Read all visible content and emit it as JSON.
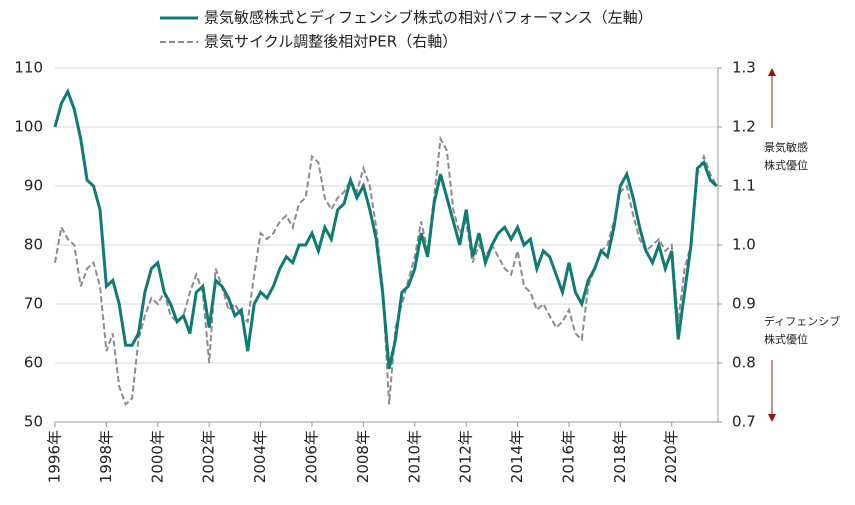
{
  "chart_data": {
    "type": "line",
    "legend": "top",
    "xlim": [
      1996,
      2021.8
    ],
    "xticks": [
      {
        "value": 1996,
        "label": "1996年"
      },
      {
        "value": 1998,
        "label": "1998年"
      },
      {
        "value": 2000,
        "label": "2000年"
      },
      {
        "value": 2002,
        "label": "2002年"
      },
      {
        "value": 2004,
        "label": "2004年"
      },
      {
        "value": 2006,
        "label": "2006年"
      },
      {
        "value": 2008,
        "label": "2008年"
      },
      {
        "value": 2010,
        "label": "2010年"
      },
      {
        "value": 2012,
        "label": "2012年"
      },
      {
        "value": 2014,
        "label": "2014年"
      },
      {
        "value": 2016,
        "label": "2016年"
      },
      {
        "value": 2018,
        "label": "2018年"
      },
      {
        "value": 2020,
        "label": "2020年"
      }
    ],
    "ylim": [
      50,
      110
    ],
    "yticks": [
      50,
      60,
      70,
      80,
      90,
      100,
      110
    ],
    "y2lim": [
      0.7,
      1.3
    ],
    "y2ticks": [
      {
        "value": 0.7,
        "label": "0.7"
      },
      {
        "value": 0.8,
        "label": "0.8"
      },
      {
        "value": 0.9,
        "label": "0.9"
      },
      {
        "value": 1.0,
        "label": "1.0"
      },
      {
        "value": 1.1,
        "label": "1.1"
      },
      {
        "value": 1.2,
        "label": "1.2"
      },
      {
        "value": 1.3,
        "label": "1.3"
      }
    ],
    "grid": true,
    "x": [
      1996,
      1996.25,
      1996.5,
      1996.75,
      1997,
      1997.25,
      1997.5,
      1997.75,
      1998,
      1998.25,
      1998.5,
      1998.75,
      1999,
      1999.25,
      1999.5,
      1999.75,
      2000,
      2000.25,
      2000.5,
      2000.75,
      2001,
      2001.25,
      2001.5,
      2001.75,
      2002,
      2002.25,
      2002.5,
      2002.75,
      2003,
      2003.25,
      2003.5,
      2003.75,
      2004,
      2004.25,
      2004.5,
      2004.75,
      2005,
      2005.25,
      2005.5,
      2005.75,
      2006,
      2006.25,
      2006.5,
      2006.75,
      2007,
      2007.25,
      2007.5,
      2007.75,
      2008,
      2008.25,
      2008.5,
      2008.75,
      2009,
      2009.25,
      2009.5,
      2009.75,
      2010,
      2010.25,
      2010.5,
      2010.75,
      2011,
      2011.25,
      2011.5,
      2011.75,
      2012,
      2012.25,
      2012.5,
      2012.75,
      2013,
      2013.25,
      2013.5,
      2013.75,
      2014,
      2014.25,
      2014.5,
      2014.75,
      2015,
      2015.25,
      2015.5,
      2015.75,
      2016,
      2016.25,
      2016.5,
      2016.75,
      2017,
      2017.25,
      2017.5,
      2017.75,
      2018,
      2018.25,
      2018.5,
      2018.75,
      2019,
      2019.25,
      2019.5,
      2019.75,
      2020,
      2020.25,
      2020.5,
      2020.75,
      2021,
      2021.25,
      2021.5,
      2021.75
    ],
    "series": [
      {
        "name": "景気敏感株式とディフェンシブ株式の相対パフォーマンス（左軸）",
        "color": "#0f7b73",
        "width": 3,
        "dash": "none",
        "values": [
          100,
          104,
          106,
          103,
          98,
          91,
          90,
          86,
          73,
          74,
          70,
          63,
          63,
          65,
          72,
          76,
          77,
          72,
          70,
          67,
          68,
          65,
          72,
          73,
          66,
          74,
          73,
          71,
          68,
          69,
          62,
          70,
          72,
          71,
          73,
          76,
          78,
          77,
          80,
          80,
          82,
          79,
          83,
          81,
          86,
          87,
          91,
          88,
          90,
          86,
          81,
          72,
          59,
          64,
          72,
          73,
          76,
          82,
          78,
          87,
          92,
          88,
          84,
          80,
          86,
          78,
          82,
          77,
          80,
          82,
          83,
          81,
          83,
          80,
          81,
          76,
          79,
          78,
          75,
          72,
          77,
          72,
          70,
          74,
          76,
          79,
          78,
          83,
          90,
          92,
          88,
          83,
          79,
          77,
          80,
          76,
          79,
          64,
          72,
          80,
          93,
          94,
          91,
          90
        ]
      },
      {
        "name": "景気サイクル調整後相対PER（右軸）",
        "color": "#8c8c8c",
        "width": 2,
        "dash": "6,3",
        "axis": "y2",
        "values": [
          0.97,
          1.03,
          1.01,
          1.0,
          0.93,
          0.96,
          0.97,
          0.93,
          0.82,
          0.85,
          0.76,
          0.73,
          0.74,
          0.84,
          0.88,
          0.91,
          0.9,
          0.92,
          0.88,
          0.87,
          0.88,
          0.92,
          0.95,
          0.92,
          0.8,
          0.96,
          0.93,
          0.89,
          0.9,
          0.88,
          0.87,
          0.95,
          1.02,
          1.01,
          1.02,
          1.04,
          1.05,
          1.03,
          1.07,
          1.08,
          1.15,
          1.14,
          1.08,
          1.06,
          1.08,
          1.09,
          1.11,
          1.09,
          1.13,
          1.1,
          1.03,
          0.93,
          0.73,
          0.86,
          0.9,
          0.94,
          0.98,
          1.04,
          0.99,
          1.08,
          1.18,
          1.16,
          1.06,
          1.02,
          1.04,
          0.97,
          1.0,
          0.98,
          1.0,
          0.98,
          0.96,
          0.95,
          0.99,
          0.93,
          0.92,
          0.89,
          0.9,
          0.88,
          0.86,
          0.87,
          0.89,
          0.85,
          0.84,
          0.93,
          0.96,
          0.99,
          1.0,
          1.04,
          1.09,
          1.1,
          1.05,
          1.01,
          0.99,
          1.0,
          1.01,
          0.99,
          1.0,
          0.87,
          0.96,
          1.0,
          1.12,
          1.15,
          1.12,
          1.1
        ]
      }
    ],
    "annotations": [
      {
        "lines": [
          "景気敏感",
          "株式優位"
        ],
        "color": "#a01010",
        "arrow": "up"
      },
      {
        "lines": [
          "ディフェンシブ",
          "株式優位"
        ],
        "color": "#a01010",
        "arrow": "down"
      }
    ]
  }
}
